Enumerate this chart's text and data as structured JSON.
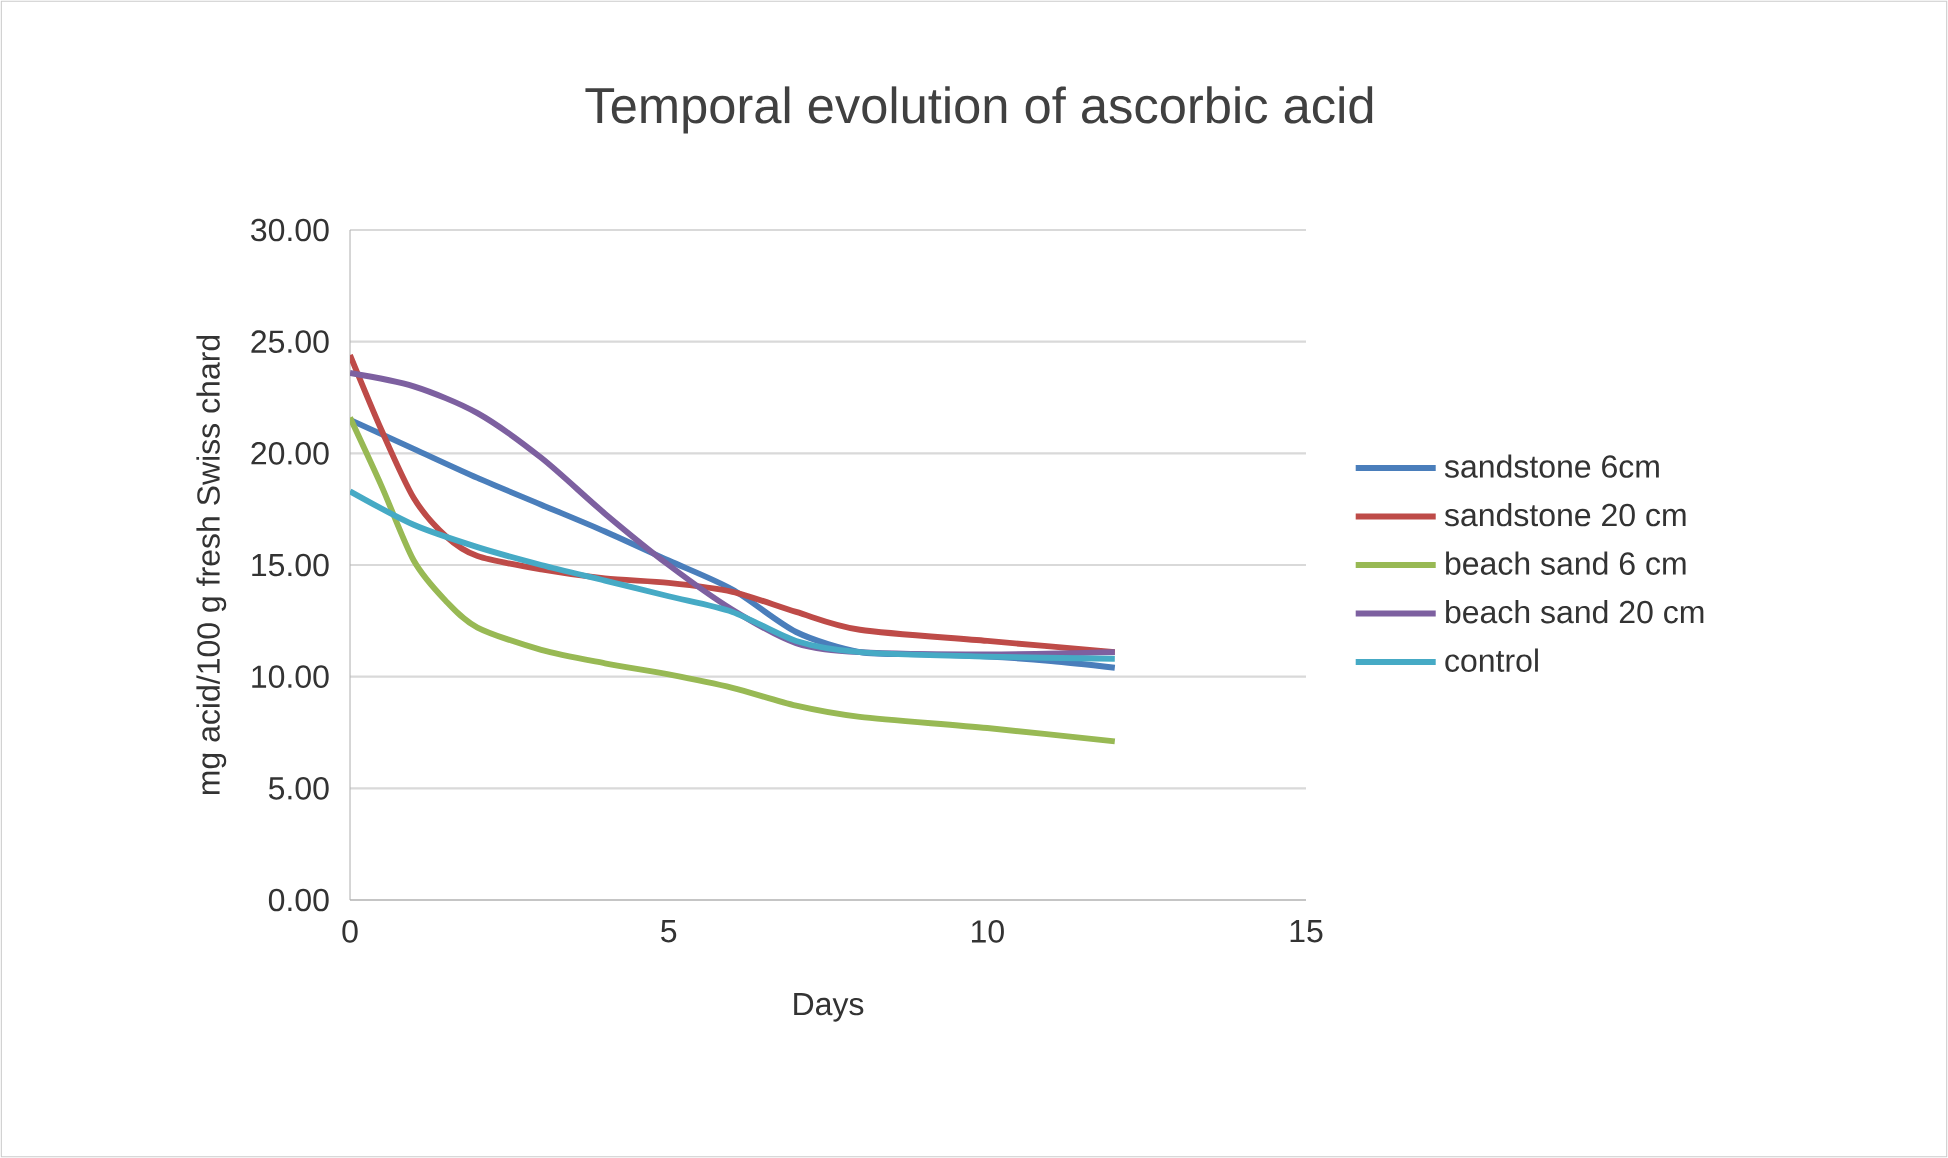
{
  "chart_data": {
    "type": "line",
    "title": "Temporal evolution of ascorbic acid",
    "xlabel": "Days",
    "ylabel": "mg acid/100 g fresh Swiss chard",
    "xlim": [
      0,
      15
    ],
    "xticks": [
      0,
      5,
      10,
      15
    ],
    "ylim": [
      0,
      30
    ],
    "yticks": [
      {
        "value": 0,
        "label": "0.00"
      },
      {
        "value": 5,
        "label": "5.00"
      },
      {
        "value": 10,
        "label": "10.00"
      },
      {
        "value": 15,
        "label": "15.00"
      },
      {
        "value": 20,
        "label": "20.00"
      },
      {
        "value": 25,
        "label": "25.00"
      },
      {
        "value": 30,
        "label": "30.00"
      }
    ],
    "grid": "y",
    "legend": "right",
    "marker": "none",
    "series": [
      {
        "name": "sandstone 6cm",
        "color": "#4a7ebb",
        "x": [
          0,
          1,
          2,
          3,
          4,
          5,
          6,
          7,
          8,
          9,
          10,
          11,
          12
        ],
        "values": [
          21.5,
          20.2,
          18.9,
          17.7,
          16.5,
          15.2,
          13.9,
          12.0,
          11.1,
          11.0,
          10.9,
          10.7,
          10.4
        ]
      },
      {
        "name": "sandstone 20 cm",
        "color": "#be4b48",
        "x": [
          0,
          0.5,
          1,
          1.5,
          2,
          3,
          4,
          5,
          6,
          7,
          8,
          10,
          12
        ],
        "values": [
          24.4,
          21.0,
          18.0,
          16.3,
          15.4,
          14.8,
          14.4,
          14.2,
          13.8,
          12.9,
          12.1,
          11.6,
          11.1
        ]
      },
      {
        "name": "beach sand 6 cm",
        "color": "#98b954",
        "x": [
          0,
          0.5,
          1,
          1.5,
          2,
          3,
          4,
          5,
          6,
          7,
          8,
          10,
          12
        ],
        "values": [
          21.6,
          18.5,
          15.2,
          13.4,
          12.2,
          11.2,
          10.6,
          10.1,
          9.5,
          8.7,
          8.2,
          7.7,
          7.1
        ]
      },
      {
        "name": "beach sand 20 cm",
        "color": "#7d60a0",
        "x": [
          0,
          1,
          2,
          3,
          4,
          5,
          6,
          7,
          8,
          10,
          12
        ],
        "values": [
          23.6,
          23.0,
          21.8,
          19.8,
          17.3,
          15.0,
          13.0,
          11.5,
          11.1,
          11.0,
          11.1
        ]
      },
      {
        "name": "control",
        "color": "#46aac5",
        "x": [
          0,
          1,
          2,
          3,
          4,
          5,
          6,
          7,
          8,
          10,
          12
        ],
        "values": [
          18.3,
          16.8,
          15.8,
          15.0,
          14.3,
          13.6,
          12.9,
          11.6,
          11.1,
          10.9,
          10.8
        ]
      }
    ]
  }
}
